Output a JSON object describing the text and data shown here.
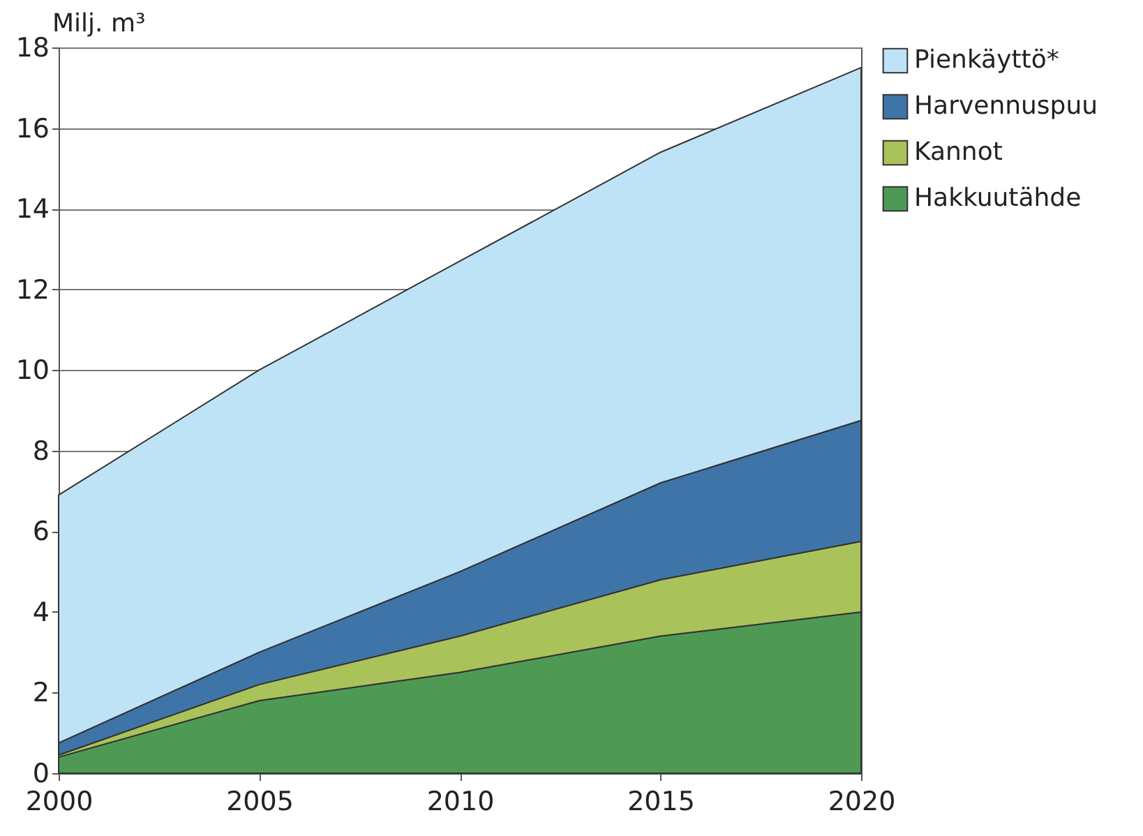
{
  "chart_data": {
    "type": "area",
    "stacked": true,
    "ylabel": "Milj. m³",
    "x": [
      2000,
      2005,
      2010,
      2015,
      2020
    ],
    "series": [
      {
        "name": "Hakkuutähde",
        "color": "#4e9a55",
        "values": [
          0.4,
          1.8,
          2.5,
          3.4,
          4.0
        ]
      },
      {
        "name": "Kannot",
        "color": "#a9c25a",
        "values": [
          0.05,
          0.4,
          0.9,
          1.4,
          1.75
        ]
      },
      {
        "name": "Harvennuspuu",
        "color": "#3f74a8",
        "values": [
          0.3,
          0.8,
          1.6,
          2.4,
          3.0
        ]
      },
      {
        "name": "Pienkäyttö*",
        "color": "#bfe3f6",
        "values": [
          6.15,
          7.0,
          7.7,
          8.2,
          8.75
        ]
      }
    ],
    "xlim": [
      2000,
      2020
    ],
    "xticks": [
      2000,
      2005,
      2010,
      2015,
      2020
    ],
    "ylim": [
      0,
      18
    ],
    "yticks": [
      0,
      2,
      4,
      6,
      8,
      10,
      12,
      14,
      16,
      18
    ],
    "grid": "y",
    "legend": "right"
  }
}
